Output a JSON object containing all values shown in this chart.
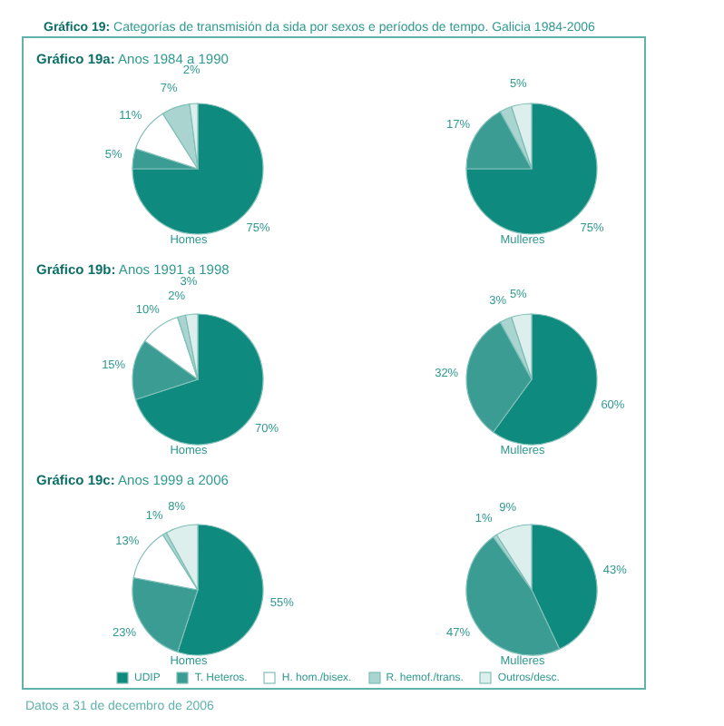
{
  "chart_data": [
    {
      "type": "pie",
      "title": "Gráfico 19: Categorías de transmisión da sida por sexos e períodos de tempo. Galicia 1984-2006",
      "subtitle": "Gráfico 19a: Anos 1984 a 1990",
      "xlabel": "Homes",
      "categories": [
        null,
        null,
        null,
        null,
        null
      ],
      "colors": [
        "#0f8a7e",
        "#3a9c93",
        "#ffffff",
        "#a9d4cf",
        "#dcefed"
      ],
      "values": [
        75,
        5,
        11,
        7,
        2
      ],
      "value_labels": [
        "75%",
        "5%",
        "11%",
        "7%",
        "2%"
      ]
    },
    {
      "type": "pie",
      "xlabel": "Mulleres",
      "categories": [
        null,
        null,
        null,
        null,
        null
      ],
      "colors": [
        "#0f8a7e",
        "#3a9c93",
        "#ffffff",
        "#a9d4cf",
        "#dcefed"
      ],
      "values": [
        75,
        17,
        0,
        3,
        5
      ],
      "value_labels": [
        "75%",
        "17%",
        null,
        null,
        "5%"
      ]
    },
    {
      "type": "pie",
      "subtitle": "Gráfico 19b: Anos 1991 a 1998",
      "xlabel": "Homes",
      "categories": [
        null,
        null,
        null,
        null,
        null
      ],
      "colors": [
        "#0f8a7e",
        "#3a9c93",
        "#ffffff",
        "#a9d4cf",
        "#dcefed"
      ],
      "values": [
        70,
        15,
        10,
        2,
        3
      ],
      "value_labels": [
        "70%",
        "15%",
        "10%",
        "2%",
        "3%"
      ]
    },
    {
      "type": "pie",
      "xlabel": "Mulleres",
      "categories": [
        null,
        null,
        null,
        null,
        null
      ],
      "colors": [
        "#0f8a7e",
        "#3a9c93",
        "#ffffff",
        "#a9d4cf",
        "#dcefed"
      ],
      "values": [
        60,
        32,
        0,
        3,
        5
      ],
      "value_labels": [
        "60%",
        "32%",
        null,
        "3%",
        "5%"
      ]
    },
    {
      "type": "pie",
      "subtitle": "Gráfico 19c: Anos 1999 a 2006",
      "xlabel": "Homes",
      "legend": "bottom",
      "annotations": [
        "Datos a 31 de decembro de 2006"
      ],
      "categories": [
        "UDIP",
        "T. Heteros.",
        "H. hom./bisex.",
        "R. hemof./trans.",
        "Outros/desc."
      ],
      "colors": [
        "#0f8a7e",
        "#3a9c93",
        "#ffffff",
        "#a9d4cf",
        "#dcefed"
      ],
      "values": [
        55,
        23,
        13,
        1,
        8
      ],
      "value_labels": [
        "55%",
        "23%",
        "13%",
        "1%",
        "8%"
      ]
    },
    {
      "type": "pie",
      "xlabel": "Mulleres",
      "categories": [
        null,
        null,
        null,
        null,
        null
      ],
      "colors": [
        "#0f8a7e",
        "#3a9c93",
        "#ffffff",
        "#a9d4cf",
        "#dcefed"
      ],
      "values": [
        43,
        47,
        0,
        1,
        9
      ],
      "value_labels": [
        "43%",
        "47%",
        null,
        "1%",
        "9%"
      ]
    }
  ]
}
